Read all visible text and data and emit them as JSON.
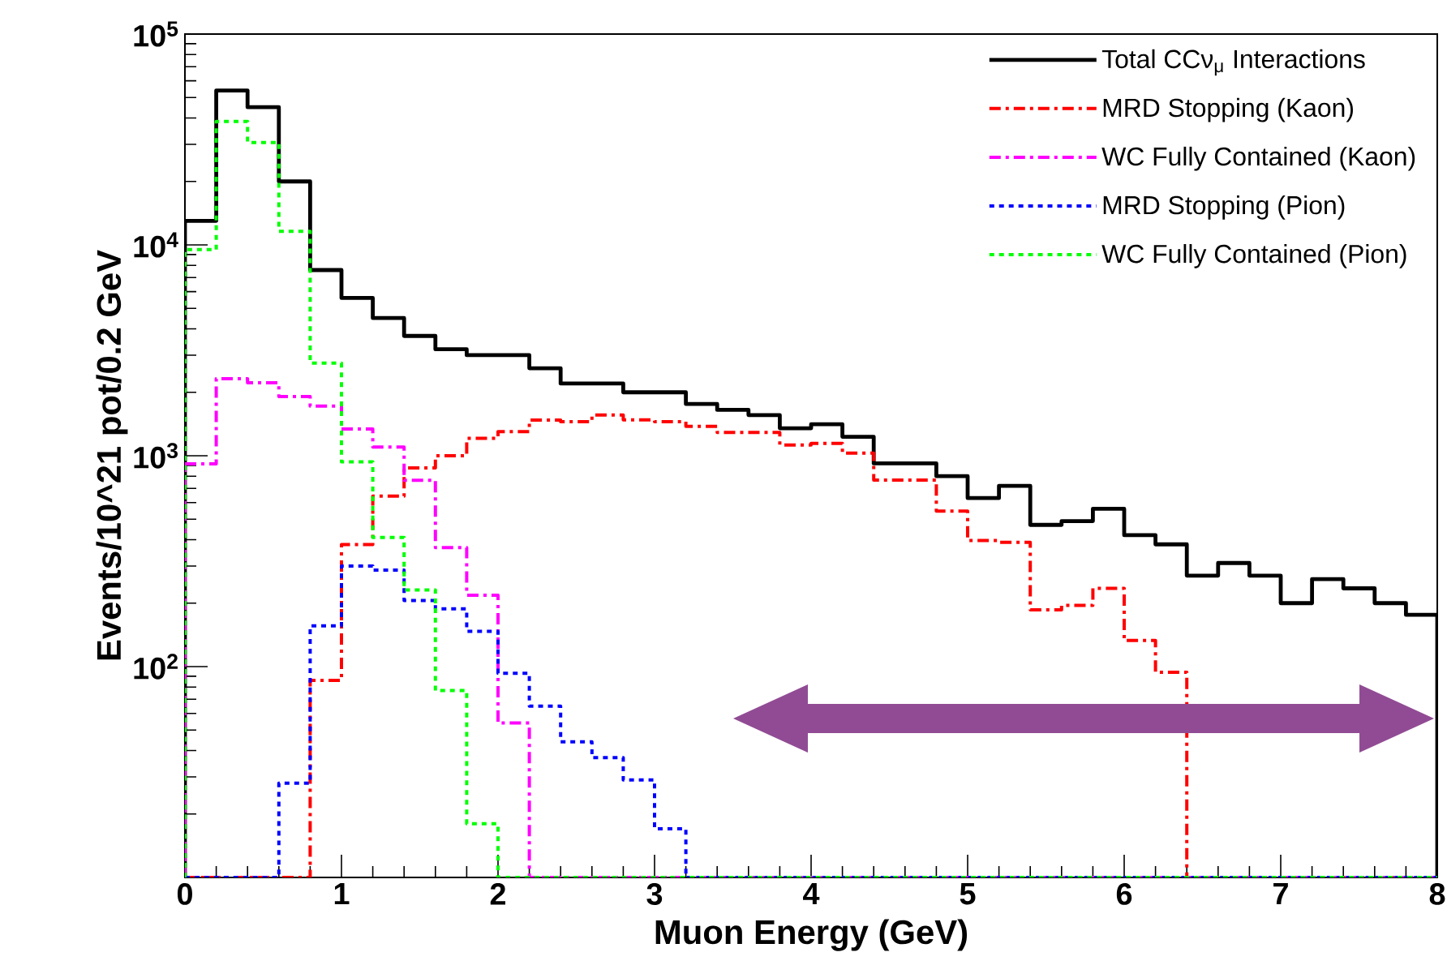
{
  "chart_data": {
    "type": "histogram",
    "xlabel": "Muon Energy (GeV)",
    "ylabel": "Events/10^21 pot/0.2 GeV",
    "bins": [
      0,
      0.2,
      0.4,
      0.6,
      0.8,
      1.0,
      1.2,
      1.4,
      1.6,
      1.8,
      2.0,
      2.2,
      2.4,
      2.6,
      2.8,
      3.0,
      3.2,
      3.4,
      3.6,
      3.8,
      4.0,
      4.2,
      4.4,
      4.6,
      4.8,
      5.0,
      5.2,
      5.4,
      5.6,
      5.8,
      6.0,
      6.2,
      6.4,
      6.6,
      6.8,
      7.0,
      7.2,
      7.4,
      7.6,
      7.8,
      8.0
    ],
    "series": [
      {
        "name": "Total CCν$_{μ}$ Interactions",
        "color": "#000000",
        "line_style": "solid",
        "values": [
          13000,
          54000,
          45000,
          20000,
          7600,
          5600,
          4500,
          3700,
          3200,
          3000,
          3000,
          2600,
          2200,
          2200,
          2000,
          2000,
          1760,
          1650,
          1560,
          1350,
          1410,
          1230,
          920,
          920,
          800,
          630,
          720,
          470,
          490,
          560,
          420,
          380,
          270,
          310,
          270,
          200,
          260,
          235,
          200,
          176
        ]
      },
      {
        "name": "MRD Stopping (Kaon)",
        "color": "#ff0000",
        "line_style": "dashdot",
        "values": [
          null,
          null,
          null,
          null,
          86,
          379,
          643,
          875,
          1000,
          1210,
          1300,
          1475,
          1450,
          1560,
          1480,
          1450,
          1380,
          1290,
          1290,
          1125,
          1145,
          1030,
          767,
          767,
          547,
          396,
          389,
          186,
          195,
          235,
          133,
          94,
          null,
          null,
          null,
          null,
          null,
          null,
          null,
          null
        ]
      },
      {
        "name": "WC Fully Contained (Kaon)",
        "color": "#ff00ff",
        "line_style": "dashdot",
        "values": [
          915,
          2320,
          2220,
          1910,
          1720,
          1340,
          1100,
          765,
          367,
          218,
          54,
          null,
          null,
          null,
          null,
          null,
          null,
          null,
          null,
          null,
          null,
          null,
          null,
          null,
          null,
          null,
          null,
          null,
          null,
          null,
          null,
          null,
          null,
          null,
          null,
          null,
          null,
          null,
          null,
          null
        ]
      },
      {
        "name": "MRD Stopping (Pion)",
        "color": "#0000ff",
        "line_style": "dashed",
        "values": [
          null,
          null,
          null,
          28,
          156,
          300,
          287,
          206,
          188,
          147,
          93,
          65,
          44,
          37,
          29,
          17,
          null,
          null,
          null,
          null,
          null,
          null,
          null,
          null,
          null,
          null,
          null,
          null,
          null,
          null,
          null,
          null,
          null,
          null,
          null,
          null,
          null,
          null,
          null,
          null
        ]
      },
      {
        "name": "WC Fully Contained (Pion)",
        "color": "#00ff00",
        "line_style": "dashed",
        "values": [
          9500,
          38500,
          30600,
          11600,
          2750,
          935,
          410,
          231,
          77,
          18,
          null,
          null,
          null,
          null,
          null,
          null,
          null,
          null,
          null,
          null,
          null,
          null,
          null,
          null,
          null,
          null,
          null,
          null,
          null,
          null,
          null,
          null,
          null,
          null,
          null,
          null,
          null,
          null,
          null,
          null
        ]
      }
    ],
    "log": "y",
    "legend": "top right",
    "xlim": [
      0,
      8
    ],
    "xticks": [
      0,
      1,
      2,
      3,
      4,
      5,
      6,
      7,
      8
    ],
    "ylim": [
      10,
      100000
    ],
    "yticks": [
      {
        "value": 100,
        "label": "10$^{2}$"
      },
      {
        "value": 1000,
        "label": "10$^{3}$"
      },
      {
        "value": 10000,
        "label": "10$^{4}$"
      },
      {
        "value": 100000,
        "label": "10$^{5}$"
      }
    ]
  }
}
